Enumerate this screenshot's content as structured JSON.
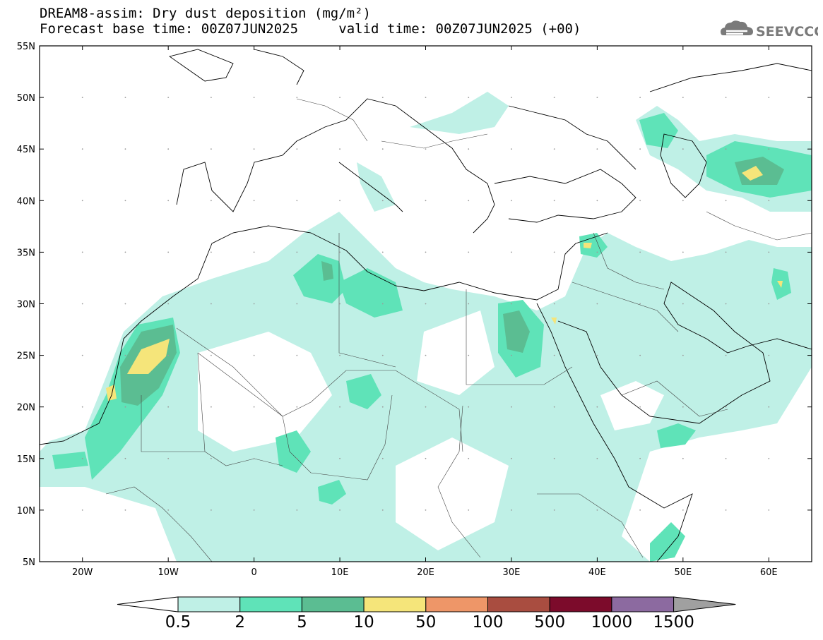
{
  "header": {
    "title": "DREAM8-assim: Dry dust deposition (mg/m²)",
    "subtitle_base": "Forecast base time: 00Z07JUN2025",
    "subtitle_valid": "valid time: 00Z07JUN2025 (+00)",
    "logo_text": "SEEVCCC"
  },
  "axes": {
    "lat_labels": [
      "55N",
      "50N",
      "45N",
      "40N",
      "35N",
      "30N",
      "25N",
      "20N",
      "15N",
      "10N",
      "5N"
    ],
    "lon_labels": [
      "20W",
      "10W",
      "0",
      "10E",
      "20E",
      "30E",
      "40E",
      "50E",
      "60E"
    ],
    "lat_range": [
      5,
      55
    ],
    "lon_range": [
      -25,
      65
    ]
  },
  "colorbar": {
    "labels": [
      "0.5",
      "2",
      "5",
      "10",
      "50",
      "100",
      "500",
      "1000",
      "1500"
    ],
    "colors": [
      "#bff0e6",
      "#5fe3b8",
      "#5bbd92",
      "#f5e57a",
      "#ee9668",
      "#a94d40",
      "#7c0b2b",
      "#8c6aa0",
      "#a0a0a0"
    ]
  }
}
